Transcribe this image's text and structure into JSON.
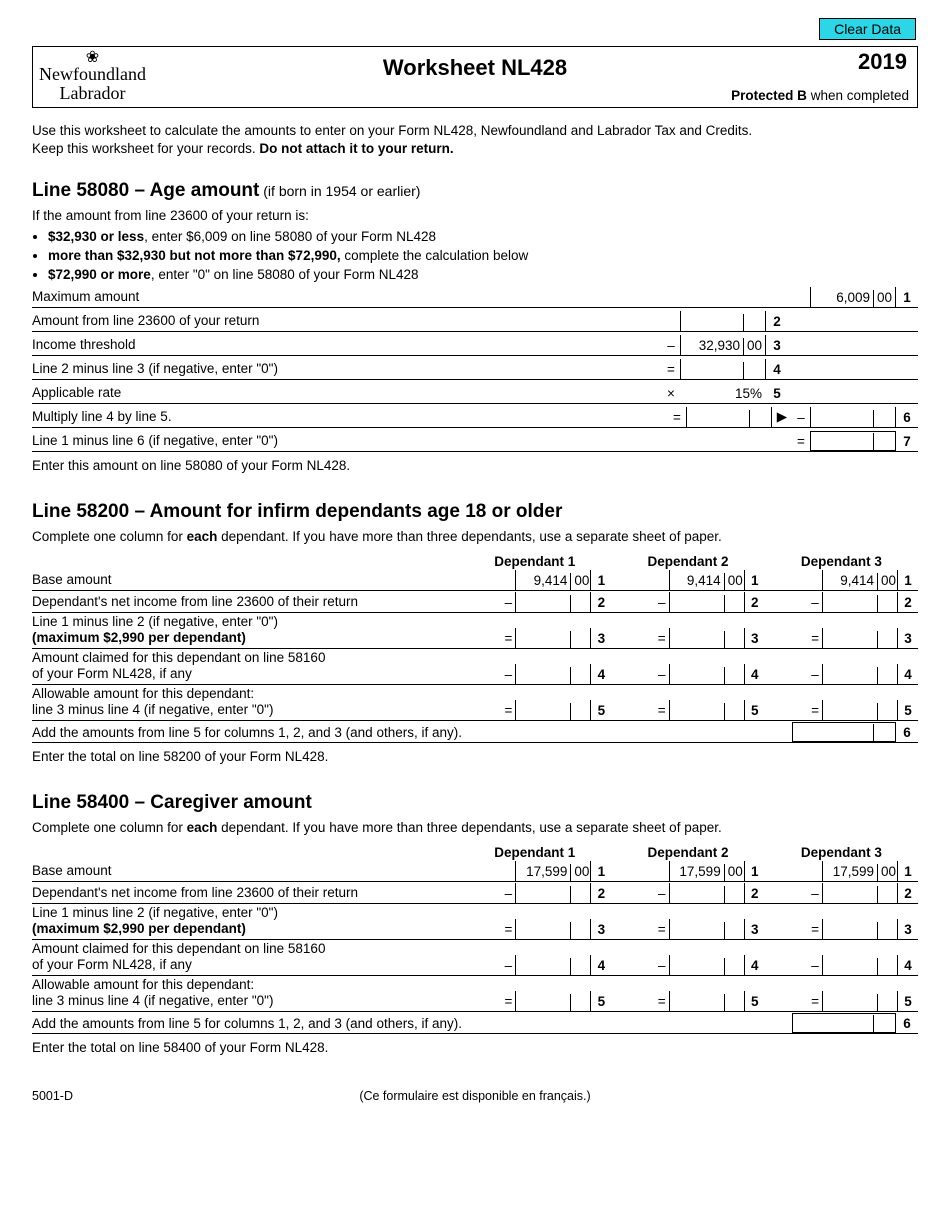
{
  "buttons": {
    "clear_data": "Clear Data"
  },
  "header": {
    "logo_line1": "Newfoundland",
    "logo_line2": "Labrador",
    "title": "Worksheet NL428",
    "year": "2019",
    "protected_b_bold": "Protected B",
    "protected_b_rest": " when completed"
  },
  "intro": {
    "p1": "Use this worksheet to calculate the amounts to enter on your Form NL428, Newfoundland and Labrador Tax and Credits.",
    "p2a": "Keep this worksheet for your records. ",
    "p2b": "Do not attach it to your return."
  },
  "sec58080": {
    "title_bold": "Line 58080 – Age amount",
    "title_rest": " (if born in 1954 or earlier)",
    "lead": "If the amount from line 23600 of your return is:",
    "bullets": [
      {
        "b": "$32,930 or less",
        "t": ", enter $6,009 on line 58080 of your Form NL428"
      },
      {
        "b": "more than $32,930 but not more than $72,990,",
        "t": " complete the calculation below"
      },
      {
        "b": "$72,990 or more",
        "t": ", enter \"0\" on line 58080 of your Form NL428"
      }
    ],
    "rows": {
      "r1": {
        "label": "Maximum amount",
        "d": "6,009",
        "c": "00",
        "num": "1"
      },
      "r2": {
        "label": "Amount from line 23600 of your return",
        "num": "2"
      },
      "r3": {
        "label": "Income threshold",
        "op": "–",
        "d": "32,930",
        "c": "00",
        "num": "3"
      },
      "r4": {
        "label": "Line 2 minus line 3 (if negative, enter \"0\")",
        "op": "=",
        "num": "4"
      },
      "r5": {
        "label": "Applicable rate",
        "op": "×",
        "pct": "15%",
        "num": "5"
      },
      "r6": {
        "label": "Multiply line 4 by line 5.",
        "op": "=",
        "arrow": "▶",
        "op2": "–",
        "num": "6"
      },
      "r7": {
        "label": "Line 1 minus line 6 (if negative, enter \"0\")",
        "op2": "=",
        "num": "7"
      }
    },
    "after": "Enter this amount on line 58080 of your Form NL428."
  },
  "sec58200": {
    "title": "Line 58200 – Amount for infirm dependants age 18 or older",
    "lead_a": "Complete one column for ",
    "lead_b": "each",
    "lead_c": " dependant. If you have more than three dependants, use a separate sheet of paper.",
    "headers": [
      "Dependant 1",
      "Dependant 2",
      "Dependant 3"
    ],
    "rows": {
      "r1": {
        "label": "Base amount",
        "d": "9,414",
        "c": "00",
        "num": "1"
      },
      "r2": {
        "label": "Dependant's net income from line 23600 of their return",
        "op": "–",
        "num": "2"
      },
      "r3": {
        "label1": "Line 1 minus line 2 (if negative, enter \"0\")",
        "label2": "(maximum $2,990 per dependant)",
        "op": "=",
        "num": "3"
      },
      "r4": {
        "label1": "Amount claimed for this dependant on line 58160",
        "label2": "of your Form NL428, if any",
        "op": "–",
        "num": "4"
      },
      "r5": {
        "label1": "Allowable amount for this dependant:",
        "label2": "line 3 minus line 4 (if negative, enter \"0\")",
        "op": "=",
        "num": "5"
      },
      "r6": {
        "label": "Add the amounts from line 5 for columns 1, 2, and 3 (and others, if any).",
        "num": "6"
      }
    },
    "after": "Enter the total on line 58200 of your Form NL428."
  },
  "sec58400": {
    "title": "Line 58400 – Caregiver amount",
    "lead_a": "Complete one column for ",
    "lead_b": "each",
    "lead_c": " dependant. If you have more than three dependants, use a separate sheet of paper.",
    "headers": [
      "Dependant 1",
      "Dependant 2",
      "Dependant 3"
    ],
    "rows": {
      "r1": {
        "label": "Base amount",
        "d": "17,599",
        "c": "00",
        "num": "1"
      },
      "r2": {
        "label": "Dependant's net income from line 23600 of their return",
        "op": "–",
        "num": "2"
      },
      "r3": {
        "label1": "Line 1 minus line 2 (if negative, enter \"0\")",
        "label2": "(maximum $2,990 per dependant)",
        "op": "=",
        "num": "3"
      },
      "r4": {
        "label1": "Amount claimed for this dependant on line 58160",
        "label2": "of your Form NL428, if any",
        "op": "–",
        "num": "4"
      },
      "r5": {
        "label1": "Allowable amount for this dependant:",
        "label2": "line 3 minus line 4 (if negative, enter \"0\")",
        "op": "=",
        "num": "5"
      },
      "r6": {
        "label": "Add the amounts from line 5 for columns 1, 2, and 3 (and others, if any).",
        "num": "6"
      }
    },
    "after": "Enter the total on line 58400 of your Form NL428."
  },
  "footer": {
    "left": "5001-D",
    "center": "(Ce formulaire est disponible en français.)"
  }
}
